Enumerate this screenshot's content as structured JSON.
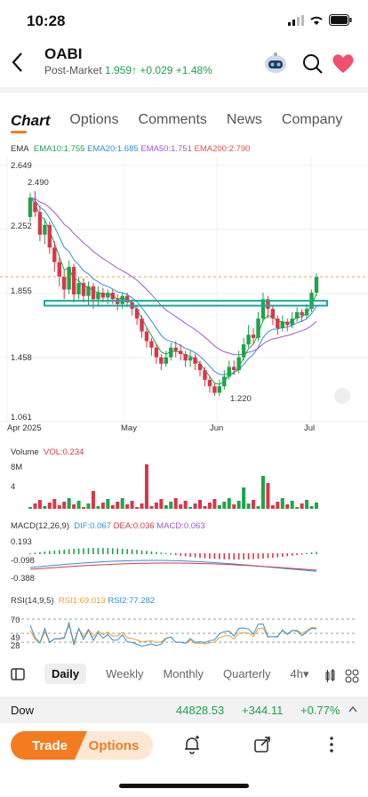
{
  "status": {
    "time": "10:28"
  },
  "header": {
    "ticker": "OABI",
    "session": "Post-Market",
    "price": "1.959",
    "change": "+0.029",
    "change_pct": "+1.48%"
  },
  "tabs": [
    "Chart",
    "Options",
    "Comments",
    "News",
    "Company"
  ],
  "ema_legend": {
    "label": "EMA",
    "items": [
      {
        "text": "EMA10:1.755",
        "color": "#1fa34a"
      },
      {
        "text": "EMA20:1.685",
        "color": "#2e8fd8"
      },
      {
        "text": "EMA50:1.751",
        "color": "#9b59d0"
      },
      {
        "text": "EMA200:2.790",
        "color": "#d9534f"
      }
    ]
  },
  "price_axis": [
    "2.649",
    "2.252",
    "1.855",
    "1.458",
    "1.061"
  ],
  "date_axis": [
    "Apr 2025",
    "May",
    "Jun",
    "Jul"
  ],
  "annotations": {
    "high": "2.490",
    "low": "1.220"
  },
  "volume": {
    "title": "Volume",
    "vol_label": "VOL:0.234",
    "axis": [
      "8M",
      "4"
    ]
  },
  "macd": {
    "title": "MACD(12,26,9)",
    "dif": "DIF:0.067",
    "dea": "DEA:0.036",
    "macd": "MACD:0.063",
    "axis": [
      "0.193",
      "-0.098",
      "-0.388"
    ]
  },
  "rsi": {
    "title": "RSI(14,9,5)",
    "rsi1": "RSI1:69.013",
    "rsi2": "RSI2:77.282",
    "axis": [
      "70",
      "49",
      "28"
    ]
  },
  "periods": [
    "Daily",
    "Weekly",
    "Monthly",
    "Quarterly",
    "4h"
  ],
  "index_bar": {
    "name": "Dow",
    "value": "44828.53",
    "change": "+344.11",
    "pct": "+0.77%"
  },
  "actions": {
    "trade": "Trade",
    "options": "Options"
  },
  "colors": {
    "up": "#1fa34a",
    "down": "#d9364a",
    "accent": "#f47b20",
    "box": "#1aa89a"
  },
  "chart_data": {
    "type": "candlestick",
    "ylim": [
      1.061,
      2.649
    ],
    "candles": [
      [
        2.33,
        2.45,
        2.3,
        2.48
      ],
      [
        2.42,
        2.36,
        2.33,
        2.49
      ],
      [
        2.36,
        2.22,
        2.18,
        2.4
      ],
      [
        2.22,
        2.28,
        2.16,
        2.32
      ],
      [
        2.28,
        2.14,
        2.1,
        2.3
      ],
      [
        2.14,
        2.05,
        1.99,
        2.18
      ],
      [
        2.05,
        1.96,
        1.9,
        2.08
      ],
      [
        1.96,
        1.88,
        1.82,
        2.0
      ],
      [
        1.88,
        2.02,
        1.85,
        2.06
      ],
      [
        2.02,
        1.85,
        1.8,
        2.04
      ],
      [
        1.85,
        1.92,
        1.82,
        1.96
      ],
      [
        1.92,
        1.84,
        1.8,
        1.95
      ],
      [
        1.84,
        1.9,
        1.78,
        1.93
      ],
      [
        1.9,
        1.82,
        1.76,
        1.92
      ],
      [
        1.82,
        1.86,
        1.78,
        1.9
      ],
      [
        1.86,
        1.83,
        1.8,
        1.89
      ],
      [
        1.83,
        1.86,
        1.79,
        1.88
      ],
      [
        1.86,
        1.82,
        1.79,
        1.88
      ],
      [
        1.82,
        1.79,
        1.75,
        1.85
      ],
      [
        1.79,
        1.84,
        1.76,
        1.86
      ],
      [
        1.84,
        1.8,
        1.77,
        1.86
      ],
      [
        1.8,
        1.76,
        1.72,
        1.82
      ],
      [
        1.76,
        1.7,
        1.66,
        1.78
      ],
      [
        1.7,
        1.62,
        1.58,
        1.72
      ],
      [
        1.62,
        1.56,
        1.52,
        1.64
      ],
      [
        1.56,
        1.52,
        1.47,
        1.58
      ],
      [
        1.52,
        1.46,
        1.42,
        1.54
      ],
      [
        1.46,
        1.42,
        1.38,
        1.48
      ],
      [
        1.42,
        1.46,
        1.4,
        1.5
      ],
      [
        1.46,
        1.52,
        1.44,
        1.55
      ],
      [
        1.52,
        1.5,
        1.46,
        1.56
      ],
      [
        1.5,
        1.48,
        1.44,
        1.54
      ],
      [
        1.48,
        1.44,
        1.4,
        1.5
      ],
      [
        1.44,
        1.46,
        1.4,
        1.5
      ],
      [
        1.46,
        1.42,
        1.38,
        1.48
      ],
      [
        1.42,
        1.38,
        1.34,
        1.44
      ],
      [
        1.38,
        1.32,
        1.28,
        1.4
      ],
      [
        1.32,
        1.28,
        1.24,
        1.34
      ],
      [
        1.28,
        1.24,
        1.22,
        1.3
      ],
      [
        1.24,
        1.28,
        1.22,
        1.32
      ],
      [
        1.28,
        1.34,
        1.26,
        1.38
      ],
      [
        1.34,
        1.4,
        1.32,
        1.44
      ],
      [
        1.4,
        1.38,
        1.35,
        1.44
      ],
      [
        1.38,
        1.46,
        1.36,
        1.5
      ],
      [
        1.46,
        1.54,
        1.44,
        1.58
      ],
      [
        1.54,
        1.6,
        1.52,
        1.66
      ],
      [
        1.6,
        1.58,
        1.54,
        1.64
      ],
      [
        1.58,
        1.7,
        1.56,
        1.74
      ],
      [
        1.7,
        1.82,
        1.68,
        1.86
      ],
      [
        1.82,
        1.76,
        1.7,
        1.84
      ],
      [
        1.76,
        1.7,
        1.66,
        1.78
      ],
      [
        1.7,
        1.64,
        1.6,
        1.72
      ],
      [
        1.64,
        1.68,
        1.62,
        1.72
      ],
      [
        1.68,
        1.66,
        1.62,
        1.7
      ],
      [
        1.66,
        1.7,
        1.64,
        1.74
      ],
      [
        1.7,
        1.74,
        1.68,
        1.77
      ],
      [
        1.74,
        1.72,
        1.68,
        1.76
      ],
      [
        1.72,
        1.76,
        1.7,
        1.79
      ],
      [
        1.76,
        1.86,
        1.74,
        1.88
      ],
      [
        1.86,
        1.96,
        1.84,
        1.98
      ]
    ],
    "support_zone": [
      1.78,
      1.81
    ],
    "dashed_price": 1.959
  }
}
